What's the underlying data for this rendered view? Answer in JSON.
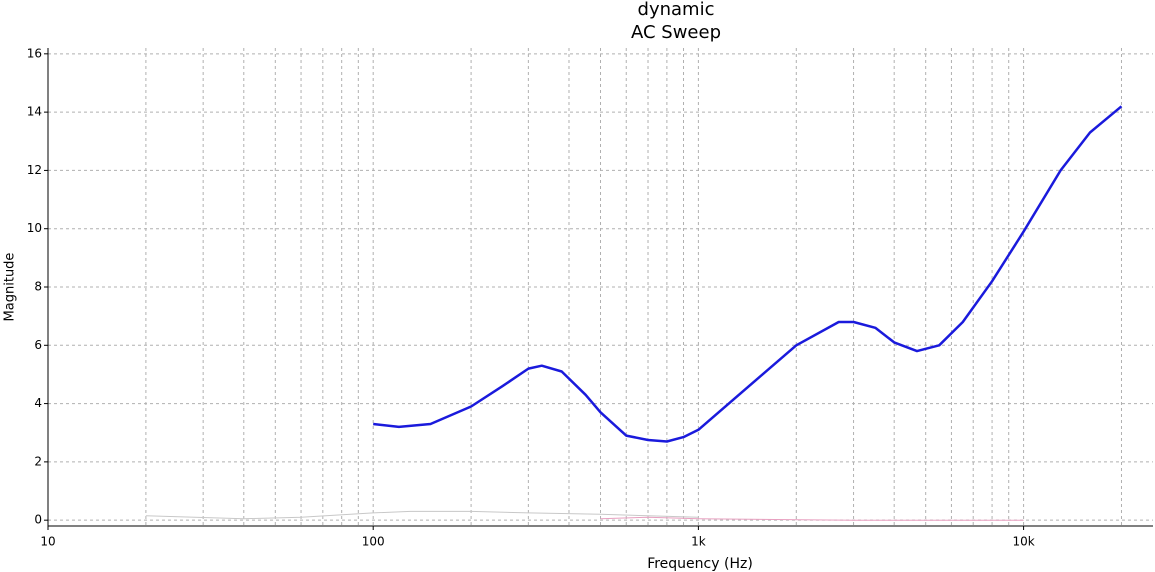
{
  "chart_data": {
    "type": "line",
    "title": "dynamic",
    "subtitle": "AC Sweep",
    "x_label": "Frequency (Hz)",
    "y_label": "Magnitude",
    "log_x": true,
    "grid": true,
    "xlim": [
      10,
      25000
    ],
    "xticks": [
      10,
      100,
      {
        "value": 1000,
        "label": "1k"
      },
      {
        "value": 10000,
        "label": "10k"
      }
    ],
    "xminorticks": [
      20,
      30,
      40,
      50,
      60,
      70,
      80,
      90,
      200,
      300,
      400,
      500,
      600,
      700,
      800,
      900,
      2000,
      3000,
      4000,
      5000,
      6000,
      7000,
      8000,
      9000,
      20000
    ],
    "ylim": [
      -0.2,
      16.2
    ],
    "yticks": [
      0,
      2,
      4,
      6,
      8,
      10,
      12,
      14,
      16
    ],
    "series": [
      {
        "color": "#1a1adc",
        "width": 2.5,
        "x": [
          100,
          120,
          150,
          200,
          250,
          300,
          330,
          380,
          450,
          500,
          600,
          700,
          800,
          900,
          1000,
          1500,
          2000,
          2700,
          3000,
          3500,
          4000,
          4700,
          5500,
          6500,
          8000,
          10000,
          13000,
          16000,
          20000
        ],
        "values": [
          3.3,
          3.2,
          3.3,
          3.9,
          4.6,
          5.2,
          5.3,
          5.1,
          4.3,
          3.7,
          2.9,
          2.75,
          2.7,
          2.85,
          3.1,
          4.8,
          6.0,
          6.8,
          6.8,
          6.6,
          6.1,
          5.8,
          6.0,
          6.8,
          8.2,
          9.9,
          12.0,
          13.3,
          14.2
        ]
      },
      {
        "color": "#c8c8c8",
        "width": 1,
        "x": [
          20,
          40,
          60,
          100,
          130,
          200,
          300,
          500,
          700,
          1000
        ],
        "values": [
          0.15,
          0.05,
          0.1,
          0.25,
          0.3,
          0.3,
          0.25,
          0.2,
          0.15,
          0.1
        ]
      },
      {
        "color": "#e8a0c0",
        "width": 1,
        "x": [
          500,
          700,
          1000,
          3000,
          10000
        ],
        "values": [
          0.05,
          0.1,
          0.05,
          0.0,
          0.0
        ]
      }
    ]
  }
}
